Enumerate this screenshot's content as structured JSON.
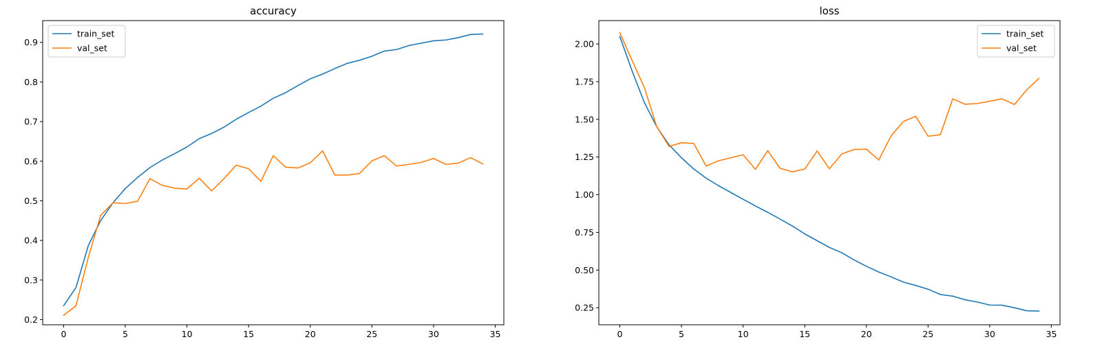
{
  "chart_data": [
    {
      "type": "line",
      "title": "accuracy",
      "xlabel": "",
      "ylabel": "",
      "xlim": [
        -1.7,
        35.7
      ],
      "ylim": [
        0.187,
        0.955
      ],
      "xticks": [
        0,
        5,
        10,
        15,
        20,
        25,
        30,
        35
      ],
      "yticks": [
        0.2,
        0.3,
        0.4,
        0.5,
        0.6,
        0.7,
        0.8,
        0.9
      ],
      "ytick_labels": [
        "0.2",
        "0.3",
        "0.4",
        "0.5",
        "0.6",
        "0.7",
        "0.8",
        "0.9"
      ],
      "legend_position": "upper left",
      "grid": false,
      "series": [
        {
          "name": "train_set",
          "color": "#1f77b4",
          "x": [
            0,
            1,
            2,
            3,
            4,
            5,
            6,
            7,
            8,
            9,
            10,
            11,
            12,
            13,
            14,
            15,
            16,
            17,
            18,
            19,
            20,
            21,
            22,
            23,
            24,
            25,
            26,
            27,
            28,
            29,
            30,
            31,
            32,
            33,
            34
          ],
          "values": [
            0.235,
            0.281,
            0.387,
            0.45,
            0.495,
            0.531,
            0.559,
            0.584,
            0.603,
            0.619,
            0.636,
            0.657,
            0.67,
            0.686,
            0.706,
            0.723,
            0.739,
            0.759,
            0.773,
            0.791,
            0.808,
            0.82,
            0.834,
            0.847,
            0.855,
            0.865,
            0.878,
            0.882,
            0.892,
            0.898,
            0.904,
            0.906,
            0.912,
            0.92,
            0.921
          ]
        },
        {
          "name": "val_set",
          "color": "#ff7f0e",
          "x": [
            0,
            1,
            2,
            3,
            4,
            5,
            6,
            7,
            8,
            9,
            10,
            11,
            12,
            13,
            14,
            15,
            16,
            17,
            18,
            19,
            20,
            21,
            22,
            23,
            24,
            25,
            26,
            27,
            28,
            29,
            30,
            31,
            32,
            33,
            34
          ],
          "values": [
            0.211,
            0.235,
            0.357,
            0.463,
            0.495,
            0.493,
            0.499,
            0.556,
            0.539,
            0.532,
            0.53,
            0.557,
            0.525,
            0.556,
            0.59,
            0.581,
            0.549,
            0.614,
            0.585,
            0.583,
            0.596,
            0.626,
            0.565,
            0.565,
            0.569,
            0.601,
            0.614,
            0.588,
            0.592,
            0.597,
            0.607,
            0.592,
            0.595,
            0.609,
            0.593
          ]
        }
      ]
    },
    {
      "type": "line",
      "title": "loss",
      "xlabel": "",
      "ylabel": "",
      "xlim": [
        -1.7,
        35.7
      ],
      "ylim": [
        0.137,
        2.155
      ],
      "xticks": [
        0,
        5,
        10,
        15,
        20,
        25,
        30,
        35
      ],
      "yticks": [
        0.25,
        0.5,
        0.75,
        1.0,
        1.25,
        1.5,
        1.75,
        2.0
      ],
      "ytick_labels": [
        "0.25",
        "0.50",
        "0.75",
        "1.00",
        "1.25",
        "1.50",
        "1.75",
        "2.00"
      ],
      "legend_position": "upper right",
      "grid": false,
      "series": [
        {
          "name": "train_set",
          "color": "#1f77b4",
          "x": [
            0,
            1,
            2,
            3,
            4,
            5,
            6,
            7,
            8,
            9,
            10,
            11,
            12,
            13,
            14,
            15,
            16,
            17,
            18,
            19,
            20,
            21,
            22,
            23,
            24,
            25,
            26,
            27,
            28,
            29,
            30,
            31,
            32,
            33,
            34
          ],
          "values": [
            2.05,
            1.82,
            1.61,
            1.45,
            1.33,
            1.245,
            1.17,
            1.11,
            1.06,
            1.015,
            0.97,
            0.925,
            0.883,
            0.838,
            0.792,
            0.74,
            0.695,
            0.65,
            0.615,
            0.567,
            0.525,
            0.487,
            0.455,
            0.42,
            0.398,
            0.373,
            0.338,
            0.327,
            0.303,
            0.288,
            0.268,
            0.267,
            0.25,
            0.23,
            0.228
          ]
        },
        {
          "name": "val_set",
          "color": "#ff7f0e",
          "x": [
            0,
            1,
            2,
            3,
            4,
            5,
            6,
            7,
            8,
            9,
            10,
            11,
            12,
            13,
            14,
            15,
            16,
            17,
            18,
            19,
            20,
            21,
            22,
            23,
            24,
            25,
            26,
            27,
            28,
            29,
            30,
            31,
            32,
            33,
            34
          ],
          "values": [
            2.075,
            1.89,
            1.71,
            1.45,
            1.32,
            1.345,
            1.34,
            1.19,
            1.225,
            1.245,
            1.265,
            1.168,
            1.292,
            1.175,
            1.152,
            1.17,
            1.29,
            1.172,
            1.27,
            1.3,
            1.302,
            1.23,
            1.39,
            1.486,
            1.52,
            1.388,
            1.398,
            1.636,
            1.6,
            1.605,
            1.62,
            1.636,
            1.598,
            1.695,
            1.772
          ]
        }
      ]
    }
  ]
}
